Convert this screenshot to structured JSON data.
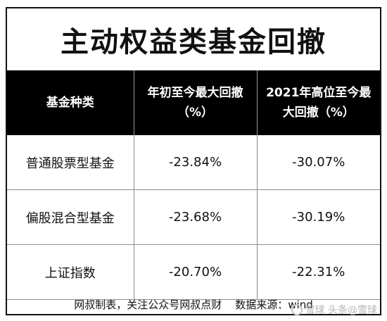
{
  "title": "主动权益类基金回撤",
  "table": {
    "headers": [
      "基金种类",
      "年初至今最大回撤（%）",
      "2021年高位至今最大回撤（%）"
    ],
    "rows": [
      [
        "普通股票型基金",
        "-23.84%",
        "-30.07%"
      ],
      [
        "偏股混合型基金",
        "-23.68%",
        "-30.19%"
      ],
      [
        "上证指数",
        "-20.70%",
        "-22.31%"
      ]
    ]
  },
  "footer": "网叔制表，关注公众号网叔点财    数据来源：wind",
  "watermark": {
    "icon": "snowball-logo-icon",
    "text": "雪球 头条@雪球"
  }
}
